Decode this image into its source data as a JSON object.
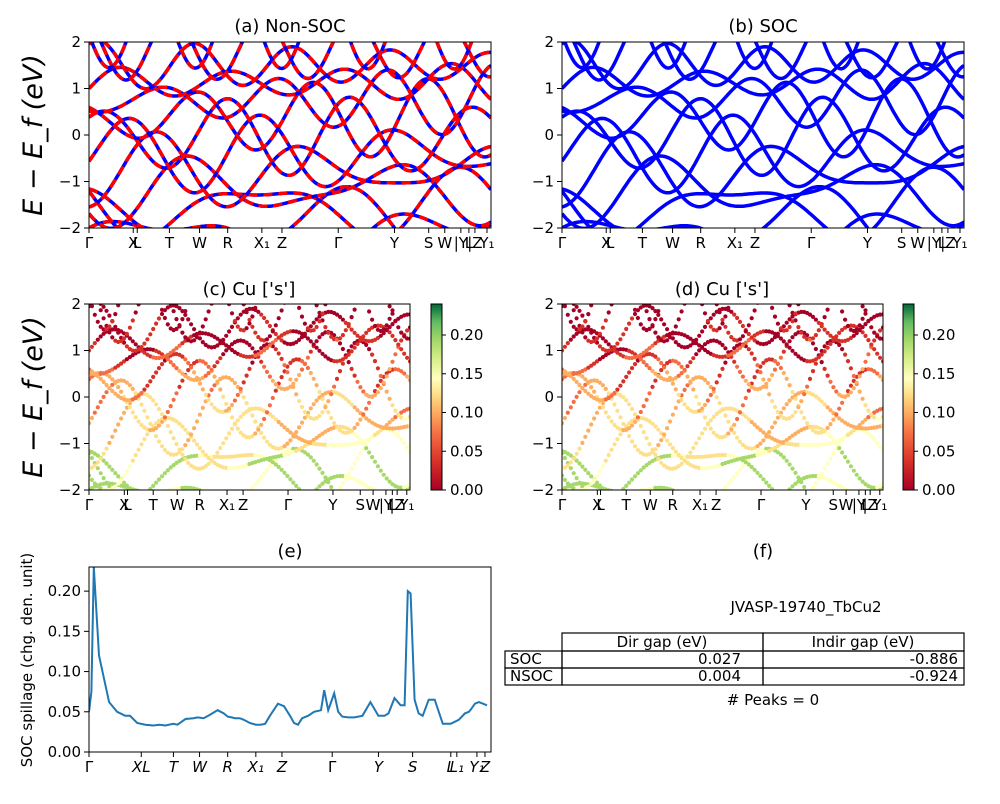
{
  "panels": {
    "a": {
      "title": "(a) Non-SOC",
      "ylabel": "E − E_f (eV)"
    },
    "b": {
      "title": "(b) SOC"
    },
    "c": {
      "title": "(c)  Cu ['s']",
      "ylabel": "E − E_f (eV)"
    },
    "d": {
      "title": "(d) Cu ['s']"
    },
    "e": {
      "title": "(e)",
      "ylabel": "SOC spillage (chg. den. unit)"
    },
    "f": {
      "title": "(f)"
    }
  },
  "band_axes": {
    "ylim": [
      -2,
      2
    ],
    "yticks": [
      "2",
      "1",
      "0",
      "−1",
      "−2"
    ],
    "kpath_labels_ab": [
      "Γ",
      "X",
      "L",
      "T",
      "W",
      "R",
      "X₁",
      "Z",
      "Γ",
      "Y",
      "S",
      "W",
      "|Y",
      "L",
      "|Z",
      "Y₁"
    ],
    "kpath_labels_cd": [
      "Γ",
      "X",
      "L",
      "T",
      "W",
      "R",
      "X₁",
      "Z",
      "Γ",
      "Y",
      "S",
      "W",
      "|Y",
      "L",
      "|Z",
      "Y₁"
    ]
  },
  "colorbar": {
    "ticks": [
      "0.20",
      "0.15",
      "0.10",
      "0.05",
      "0.00"
    ],
    "range": [
      0,
      0.24
    ],
    "colormap": "RdYlGn"
  },
  "spillage_axes": {
    "yticks": [
      "0.20",
      "0.15",
      "0.10",
      "0.05",
      "0.00"
    ],
    "xticks": [
      "Γ",
      "XL",
      "T",
      "W",
      "R",
      "X₁",
      "Z",
      "Γ",
      "Y",
      "S",
      "L",
      "L₁",
      "Y₁",
      "Z"
    ]
  },
  "table": {
    "title": "JVASP-19740_TbCu2",
    "headers": [
      "Dir gap (eV)",
      "Indir gap (eV)"
    ],
    "rows": [
      {
        "label": "SOC",
        "dir": "0.027",
        "indir": "-0.886"
      },
      {
        "label": "NSOC",
        "dir": "0.004",
        "indir": "-0.924"
      }
    ],
    "footer": "# Peaks = 0"
  },
  "colors": {
    "nonsoc": "#ff0000",
    "soc": "#0000ff",
    "spillage": "#1f77b4"
  },
  "chart_data": [
    {
      "type": "line",
      "title": "(e)",
      "ylabel": "SOC spillage (chg. den. unit)",
      "ylim": [
        0,
        0.23
      ],
      "x": [
        0,
        0.6,
        1.2,
        2.5,
        5,
        7,
        9,
        10.2,
        12,
        14,
        16,
        17.5,
        19,
        21,
        22,
        24,
        26,
        27,
        28.5,
        30,
        32,
        33.5,
        34.5,
        35.5,
        36.3,
        37.5,
        38.5,
        40,
        41.5,
        42.7,
        43.8,
        45,
        47,
        48.5,
        50,
        51,
        52,
        53,
        54.5,
        56,
        57.7,
        58.5,
        59.5,
        61,
        62,
        63,
        64.5,
        66,
        68,
        70,
        72,
        73.5,
        74.5,
        76,
        77.5,
        78.5,
        79.3,
        80,
        81,
        82,
        83,
        84.5,
        86,
        88,
        90,
        92,
        93.5,
        94.5,
        95,
        96,
        97,
        98,
        99
      ],
      "values": [
        0.05,
        0.075,
        0.23,
        0.12,
        0.062,
        0.05,
        0.045,
        0.045,
        0.036,
        0.034,
        0.033,
        0.034,
        0.033,
        0.035,
        0.034,
        0.041,
        0.042,
        0.043,
        0.042,
        0.046,
        0.052,
        0.048,
        0.044,
        0.043,
        0.042,
        0.042,
        0.04,
        0.036,
        0.034,
        0.034,
        0.035,
        0.045,
        0.06,
        0.057,
        0.045,
        0.036,
        0.034,
        0.042,
        0.045,
        0.05,
        0.052,
        0.077,
        0.052,
        0.073,
        0.05,
        0.044,
        0.043,
        0.043,
        0.045,
        0.062,
        0.045,
        0.045,
        0.048,
        0.067,
        0.058,
        0.058,
        0.2,
        0.197,
        0.065,
        0.048,
        0.045,
        0.065,
        0.065,
        0.035,
        0.035,
        0.04,
        0.048,
        0.05,
        0.053,
        0.06,
        0.062,
        0.06,
        0.058
      ]
    }
  ]
}
